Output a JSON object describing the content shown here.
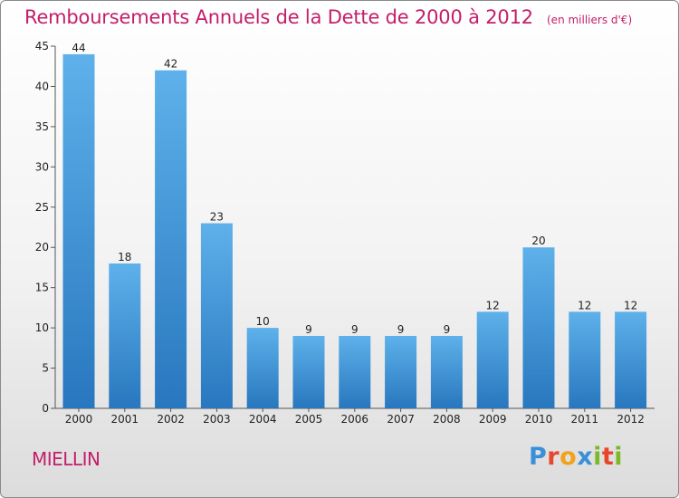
{
  "header": {
    "title": "Remboursements Annuels de la Dette de 2000 à 2012",
    "subtitle": "(en milliers d'€)"
  },
  "footer": {
    "commune": "MIELLIN",
    "brand": "Proxiti"
  },
  "colors": {
    "title": "#c41e6a",
    "bar_top": "#5eb1ea",
    "bar_bottom": "#2877bf",
    "brand_letters": [
      "#3a8fd8",
      "#e8452c",
      "#f0a31b",
      "#3a8fd8",
      "#7bb928",
      "#e8452c",
      "#7bb928"
    ]
  },
  "chart_data": {
    "type": "bar",
    "categories": [
      "2000",
      "2001",
      "2002",
      "2003",
      "2004",
      "2005",
      "2006",
      "2007",
      "2008",
      "2009",
      "2010",
      "2011",
      "2012"
    ],
    "values": [
      44,
      18,
      42,
      23,
      10,
      9,
      9,
      9,
      9,
      12,
      20,
      12,
      12
    ],
    "ylim": [
      0,
      45
    ],
    "yticks": [
      0,
      5,
      10,
      15,
      20,
      25,
      30,
      35,
      40,
      45
    ],
    "grid": false,
    "legend": "none"
  }
}
